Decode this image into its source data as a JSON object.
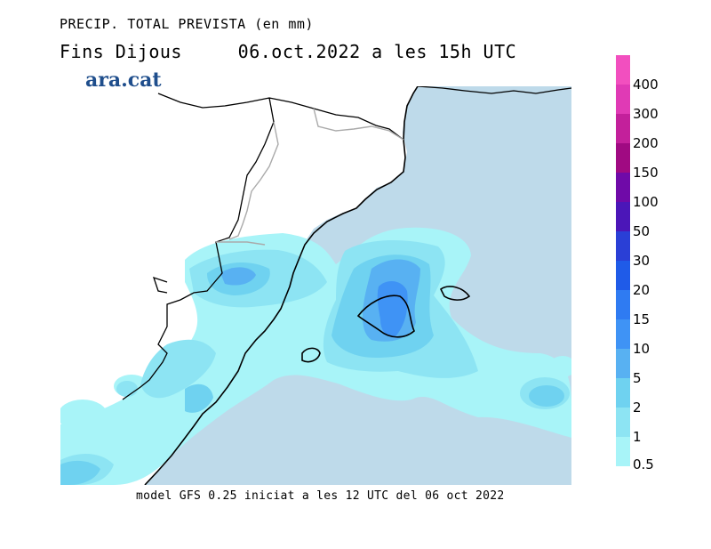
{
  "header": {
    "line1": "PRECIP. TOTAL PREVISTA (en mm)",
    "line2": "Fins Dijous     06.oct.2022 a les 15h UTC",
    "brand": "ara.cat"
  },
  "footer": "model GFS 0.25 iniciat a les 12 UTC del 06 oct 2022",
  "legend": {
    "labels": [
      "400",
      "300",
      "200",
      "150",
      "100",
      "50",
      "30",
      "20",
      "15",
      "10",
      "5",
      "2",
      "1",
      "0.5"
    ],
    "colors": [
      "#f24fbf",
      "#e03ab5",
      "#c3209b",
      "#a00a82",
      "#6f0aa8",
      "#4b16b8",
      "#2a3fd6",
      "#1f5be8",
      "#2f7bf2",
      "#3f93f5",
      "#58b1f2",
      "#6fd2f0",
      "#8de4f3",
      "#a8f4f8"
    ]
  },
  "map": {
    "land_color": "#ffffff",
    "sea_color": "#bedaea",
    "precip_colors": {
      "p05": "#a8f4f8",
      "p1": "#8de4f3",
      "p2": "#6fd2f0",
      "p5": "#58b1f2",
      "p10": "#3f93f5"
    }
  }
}
